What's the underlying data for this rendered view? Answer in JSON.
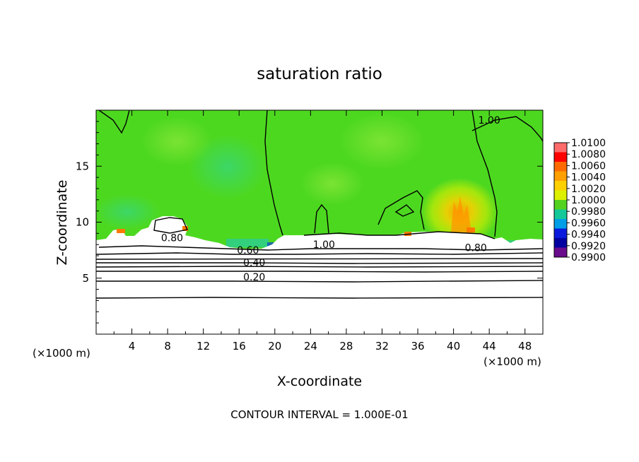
{
  "chart_data": {
    "type": "heatmap",
    "title": "saturation ratio",
    "xlabel": "X-coordinate",
    "ylabel": "Z-coordinate",
    "x_unit_left": "(×1000 m)",
    "x_unit_right": "(×1000 m)",
    "xlim": [
      0,
      50
    ],
    "ylim": [
      0,
      20
    ],
    "x_ticks": [
      4,
      8,
      12,
      16,
      20,
      24,
      28,
      32,
      36,
      40,
      44,
      48
    ],
    "y_ticks": [
      5,
      10,
      15
    ],
    "contour_labels": [
      {
        "text": "1.00",
        "x": 44,
        "y": 18.8
      },
      {
        "text": "0.80",
        "x": 8.5,
        "y": 8.3
      },
      {
        "text": "0.60",
        "x": 17,
        "y": 7.2
      },
      {
        "text": "1.00",
        "x": 25.5,
        "y": 7.7
      },
      {
        "text": "0.80",
        "x": 42.5,
        "y": 7.4
      },
      {
        "text": "0.40",
        "x": 17.7,
        "y": 6.1
      },
      {
        "text": "0.20",
        "x": 17.7,
        "y": 4.8
      }
    ],
    "colorbar": {
      "labels": [
        "1.0100",
        "1.0080",
        "1.0060",
        "1.0040",
        "1.0020",
        "1.0000",
        "0.9980",
        "0.9960",
        "0.9940",
        "0.9920",
        "0.9900"
      ],
      "colors": [
        "#ff6b6b",
        "#ff0000",
        "#ff6a00",
        "#ff9f00",
        "#ffd000",
        "#dcf000",
        "#52d21f",
        "#14c89a",
        "#009ee6",
        "#0a1adc",
        "#0000a0",
        "#6a0a8c"
      ]
    },
    "field": {
      "background_color": "#4dd820",
      "subsaturated_below_km": 8.8,
      "moist_patch": {
        "x_center": 41,
        "z_center": 10,
        "max_value": 1.005
      }
    },
    "footer": "CONTOUR INTERVAL = 1.000E-01"
  }
}
